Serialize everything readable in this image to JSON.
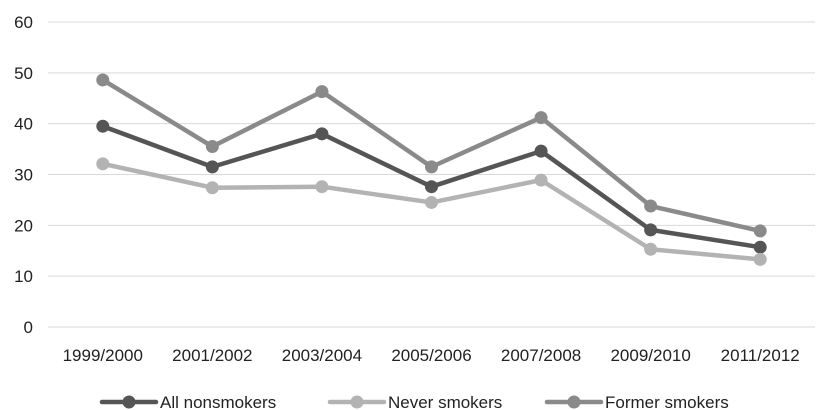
{
  "chart_data": {
    "type": "line",
    "categories": [
      "1999/2000",
      "2001/2002",
      "2003/2004",
      "2005/2006",
      "2007/2008",
      "2009/2010",
      "2011/2012"
    ],
    "series": [
      {
        "name": "All nonsmokers",
        "color": "#555555",
        "values": [
          39.5,
          31.5,
          38.0,
          27.6,
          34.6,
          19.1,
          15.7
        ]
      },
      {
        "name": "Never smokers",
        "color": "#b3b3b3",
        "values": [
          32.1,
          27.4,
          27.6,
          24.5,
          28.9,
          15.3,
          13.3
        ]
      },
      {
        "name": "Former smokers",
        "color": "#8a8a8a",
        "values": [
          48.6,
          35.5,
          46.3,
          31.5,
          41.2,
          23.8,
          18.9
        ]
      }
    ],
    "y_ticks": [
      0,
      10,
      20,
      30,
      40,
      50,
      60
    ],
    "ylim": [
      0,
      60
    ],
    "grid": true,
    "legend_position": "bottom",
    "title": "",
    "xlabel": "",
    "ylabel": ""
  }
}
